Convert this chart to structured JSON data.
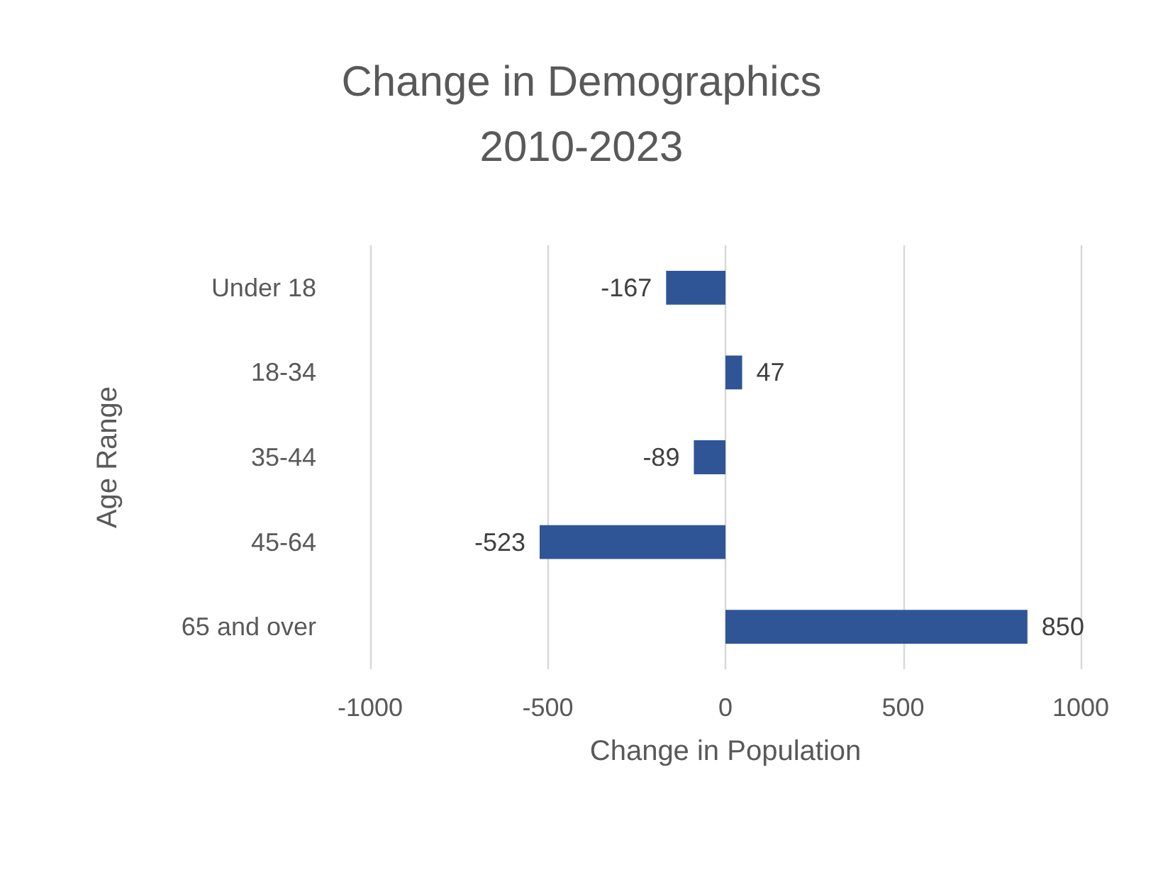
{
  "chart_data": {
    "type": "bar",
    "orientation": "horizontal",
    "title": "Change in Demographics\n2010-2023",
    "xlabel": "Change in Population",
    "ylabel": "Age Range",
    "categories": [
      "Under 18",
      "18-34",
      "35-44",
      "45-64",
      "65 and over"
    ],
    "values": [
      -167,
      47,
      -89,
      -523,
      850
    ],
    "color": "#2f5597",
    "data_labels": true,
    "xlim": [
      -1000,
      1000
    ],
    "xticks": [
      -1000,
      -500,
      0,
      500,
      1000
    ],
    "grid": "x"
  }
}
